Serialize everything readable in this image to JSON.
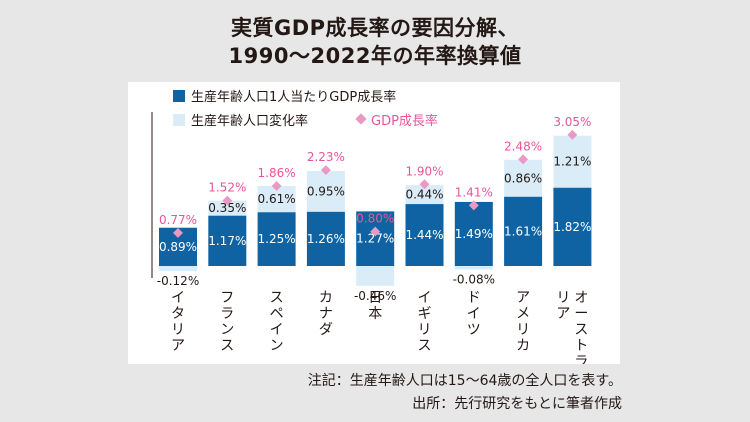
{
  "title": {
    "line1": "実質GDP成長率の要因分解、",
    "line2": "1990～2022年の年率換算値"
  },
  "chart_data": {
    "type": "bar",
    "stacked": true,
    "categories": [
      "イタリア",
      "フランス",
      "スペイン",
      "カナダ",
      "日本",
      "イギリス",
      "ドイツ",
      "アメリカ",
      "オーストラリア"
    ],
    "series": [
      {
        "name": "生産年齢人口1人当たりGDP成長率",
        "color": "#0f63a3",
        "values": [
          0.89,
          1.17,
          1.25,
          1.26,
          1.27,
          1.44,
          1.49,
          1.61,
          1.82
        ],
        "labels": [
          "0.89%",
          "1.17%",
          "1.25%",
          "1.26%",
          "1.27%",
          "1.44%",
          "1.49%",
          "1.61%",
          "1.82%"
        ]
      },
      {
        "name": "生産年齢人口変化率",
        "color": "#d9ecf7",
        "values": [
          -0.12,
          0.35,
          0.61,
          0.95,
          -0.46,
          0.44,
          -0.08,
          0.86,
          1.21
        ],
        "labels": [
          "-0.12%",
          "0.35%",
          "0.61%",
          "0.95%",
          "-0.46%",
          "0.44%",
          "-0.08%",
          "0.86%",
          "1.21%"
        ]
      }
    ],
    "markers": {
      "name": "GDP成長率",
      "color": "#e89ac4",
      "values": [
        0.77,
        1.52,
        1.86,
        2.23,
        0.8,
        1.9,
        1.41,
        2.48,
        3.05
      ],
      "labels": [
        "0.77%",
        "1.52%",
        "1.86%",
        "2.23%",
        "0.80%",
        "1.90%",
        "1.41%",
        "2.48%",
        "3.05%"
      ]
    },
    "ylim": [
      -0.5,
      3.2
    ],
    "legend_position": "top-left"
  },
  "notes": {
    "line1": "注記：生産年齢人口は15～64歳の全人口を表す。",
    "line2": "出所：先行研究をもとに筆者作成"
  }
}
